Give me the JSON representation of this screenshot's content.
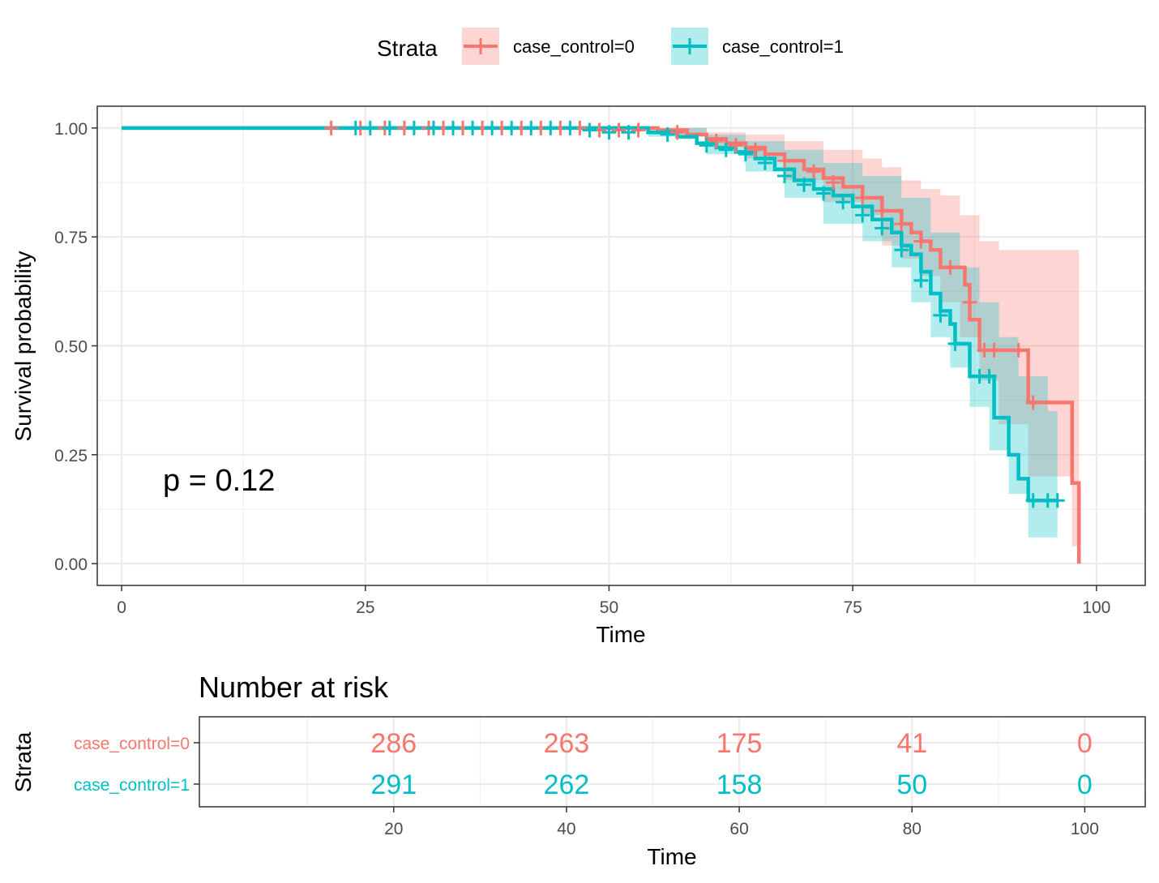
{
  "legend": {
    "title": "Strata",
    "items": [
      {
        "label": "case_control=0",
        "color": "#F8766D"
      },
      {
        "label": "case_control=1",
        "color": "#00BFC4"
      }
    ]
  },
  "annotation": "p = 0.12",
  "chart_data": [
    {
      "type": "line",
      "subtype": "kaplan-meier step curve with confidence bands and censor marks",
      "xlabel": "Time",
      "ylabel": "Survival probability",
      "xlim": [
        -2.5,
        105
      ],
      "ylim": [
        -0.05,
        1.05
      ],
      "xticks": [
        0,
        25,
        50,
        75,
        100
      ],
      "yticks": [
        0,
        0.25,
        0.5,
        0.75,
        1.0
      ],
      "ytick_labels": [
        "0.00",
        "0.25",
        "0.50",
        "0.75",
        "1.00"
      ],
      "grid": true,
      "legend_position": "top",
      "series": [
        {
          "name": "case_control=0",
          "color": "#F8766D",
          "steps": [
            [
              0,
              1.0
            ],
            [
              55,
              0.995
            ],
            [
              58,
              0.985
            ],
            [
              60,
              0.975
            ],
            [
              62,
              0.965
            ],
            [
              64,
              0.955
            ],
            [
              66,
              0.94
            ],
            [
              68,
              0.925
            ],
            [
              70,
              0.905
            ],
            [
              72,
              0.885
            ],
            [
              74,
              0.865
            ],
            [
              76,
              0.84
            ],
            [
              78,
              0.81
            ],
            [
              80,
              0.78
            ],
            [
              81,
              0.76
            ],
            [
              82,
              0.74
            ],
            [
              83,
              0.72
            ],
            [
              84,
              0.68
            ],
            [
              86.5,
              0.64
            ],
            [
              87,
              0.56
            ],
            [
              88,
              0.49
            ],
            [
              93,
              0.37
            ],
            [
              97.5,
              0.185
            ],
            [
              98.2,
              0.0
            ]
          ],
          "upper": [
            [
              0,
              1.0
            ],
            [
              55,
              1.0
            ],
            [
              60,
              0.99
            ],
            [
              64,
              0.985
            ],
            [
              68,
              0.97
            ],
            [
              72,
              0.95
            ],
            [
              76,
              0.93
            ],
            [
              78,
              0.91
            ],
            [
              80,
              0.88
            ],
            [
              82,
              0.86
            ],
            [
              84,
              0.845
            ],
            [
              86,
              0.8
            ],
            [
              88,
              0.74
            ],
            [
              90,
              0.72
            ],
            [
              98,
              0.72
            ],
            [
              98.2,
              0.86
            ]
          ],
          "lower": [
            [
              0,
              1.0
            ],
            [
              55,
              0.985
            ],
            [
              60,
              0.96
            ],
            [
              64,
              0.93
            ],
            [
              68,
              0.88
            ],
            [
              72,
              0.83
            ],
            [
              76,
              0.8
            ],
            [
              78,
              0.73
            ],
            [
              80,
              0.7
            ],
            [
              82,
              0.66
            ],
            [
              84,
              0.6
            ],
            [
              86,
              0.52
            ],
            [
              88,
              0.42
            ],
            [
              90,
              0.32
            ],
            [
              93,
              0.2
            ],
            [
              97.5,
              0.04
            ],
            [
              98.2,
              0.04
            ]
          ],
          "censored": [
            [
              21.5,
              1.0
            ],
            [
              24.5,
              1.0
            ],
            [
              27,
              1.0
            ],
            [
              29,
              1.0
            ],
            [
              31.5,
              1.0
            ],
            [
              33,
              1.0
            ],
            [
              35,
              1.0
            ],
            [
              37,
              1.0
            ],
            [
              39,
              1.0
            ],
            [
              41,
              1.0
            ],
            [
              43,
              1.0
            ],
            [
              45,
              1.0
            ],
            [
              47,
              1.0
            ],
            [
              49,
              0.995
            ],
            [
              51,
              0.995
            ],
            [
              53,
              0.995
            ],
            [
              57,
              0.99
            ],
            [
              61,
              0.97
            ],
            [
              63,
              0.96
            ],
            [
              65,
              0.95
            ],
            [
              68,
              0.925
            ],
            [
              71,
              0.9
            ],
            [
              73,
              0.875
            ],
            [
              76,
              0.84
            ],
            [
              78,
              0.81
            ],
            [
              80,
              0.78
            ],
            [
              82,
              0.74
            ],
            [
              85,
              0.68
            ],
            [
              87,
              0.6
            ],
            [
              88.5,
              0.49
            ],
            [
              89.5,
              0.49
            ],
            [
              92,
              0.49
            ],
            [
              93.5,
              0.37
            ]
          ]
        },
        {
          "name": "case_control=1",
          "color": "#00BFC4",
          "steps": [
            [
              0,
              1.0
            ],
            [
              54,
              0.99
            ],
            [
              57,
              0.98
            ],
            [
              59,
              0.965
            ],
            [
              61,
              0.955
            ],
            [
              63,
              0.945
            ],
            [
              65,
              0.93
            ],
            [
              67,
              0.905
            ],
            [
              69,
              0.88
            ],
            [
              71,
              0.86
            ],
            [
              73,
              0.845
            ],
            [
              75,
              0.82
            ],
            [
              77,
              0.79
            ],
            [
              79,
              0.76
            ],
            [
              80,
              0.73
            ],
            [
              81,
              0.71
            ],
            [
              82,
              0.67
            ],
            [
              83,
              0.62
            ],
            [
              84,
              0.58
            ],
            [
              85,
              0.55
            ],
            [
              85.5,
              0.505
            ],
            [
              87,
              0.43
            ],
            [
              89.5,
              0.335
            ],
            [
              91,
              0.25
            ],
            [
              92,
              0.195
            ],
            [
              93,
              0.145
            ],
            [
              96,
              0.145
            ]
          ],
          "upper": [
            [
              0,
              1.0
            ],
            [
              54,
              1.0
            ],
            [
              60,
              0.985
            ],
            [
              64,
              0.97
            ],
            [
              68,
              0.95
            ],
            [
              72,
              0.92
            ],
            [
              76,
              0.89
            ],
            [
              80,
              0.84
            ],
            [
              83,
              0.76
            ],
            [
              86,
              0.68
            ],
            [
              88,
              0.6
            ],
            [
              90,
              0.52
            ],
            [
              92,
              0.43
            ],
            [
              95,
              0.35
            ],
            [
              96,
              0.35
            ]
          ],
          "lower": [
            [
              0,
              1.0
            ],
            [
              54,
              0.98
            ],
            [
              60,
              0.94
            ],
            [
              64,
              0.9
            ],
            [
              68,
              0.84
            ],
            [
              72,
              0.78
            ],
            [
              76,
              0.74
            ],
            [
              79,
              0.68
            ],
            [
              81,
              0.6
            ],
            [
              83,
              0.52
            ],
            [
              85,
              0.45
            ],
            [
              87,
              0.36
            ],
            [
              89,
              0.26
            ],
            [
              91,
              0.16
            ],
            [
              93,
              0.06
            ],
            [
              96,
              0.06
            ]
          ],
          "censored": [
            [
              24,
              1.0
            ],
            [
              25.5,
              1.0
            ],
            [
              27.5,
              1.0
            ],
            [
              30,
              1.0
            ],
            [
              32,
              1.0
            ],
            [
              34,
              1.0
            ],
            [
              36,
              1.0
            ],
            [
              38,
              1.0
            ],
            [
              40,
              1.0
            ],
            [
              42,
              1.0
            ],
            [
              44,
              1.0
            ],
            [
              46,
              1.0
            ],
            [
              48,
              0.995
            ],
            [
              50,
              0.99
            ],
            [
              52,
              0.99
            ],
            [
              56,
              0.985
            ],
            [
              60,
              0.96
            ],
            [
              62,
              0.95
            ],
            [
              64,
              0.94
            ],
            [
              66,
              0.92
            ],
            [
              68,
              0.89
            ],
            [
              70,
              0.87
            ],
            [
              72,
              0.85
            ],
            [
              74,
              0.83
            ],
            [
              76,
              0.8
            ],
            [
              78,
              0.77
            ],
            [
              80,
              0.72
            ],
            [
              82,
              0.65
            ],
            [
              84,
              0.57
            ],
            [
              85.5,
              0.505
            ],
            [
              88,
              0.43
            ],
            [
              89,
              0.43
            ],
            [
              93.5,
              0.145
            ],
            [
              95,
              0.145
            ],
            [
              96,
              0.145
            ]
          ]
        }
      ]
    },
    {
      "type": "table",
      "title": "Number at risk",
      "xlabel": "Time",
      "ylabel": "Strata",
      "xlim": [
        -2.5,
        107
      ],
      "xticks": [
        20,
        40,
        60,
        80,
        100
      ],
      "rows": [
        {
          "name": "case_control=0",
          "color": "#F8766D",
          "values": [
            286,
            263,
            175,
            41,
            0
          ]
        },
        {
          "name": "case_control=1",
          "color": "#00BFC4",
          "values": [
            291,
            262,
            158,
            50,
            0
          ]
        }
      ]
    }
  ]
}
